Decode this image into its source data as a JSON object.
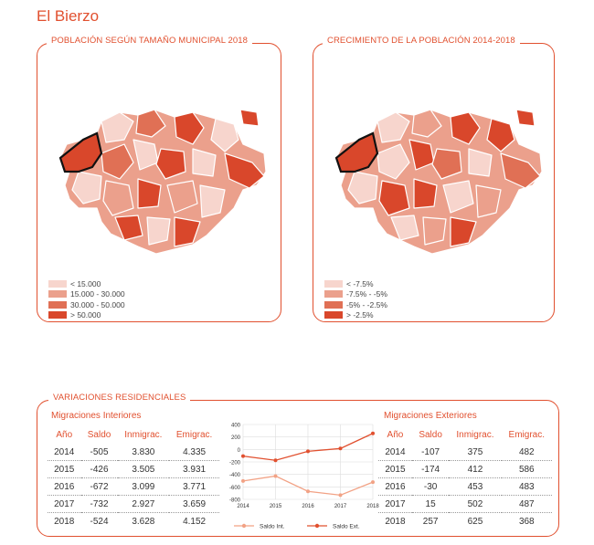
{
  "page_title": "El Bierzo",
  "map1": {
    "title": "POBLACIÓN SEGÚN TAMAÑO MUNICIPAL 2018",
    "legend": [
      {
        "label": "< 15.000",
        "color": "#f7d5cd"
      },
      {
        "label": "15.000 - 30.000",
        "color": "#eba08c"
      },
      {
        "label": "30.000 - 50.000",
        "color": "#e07055"
      },
      {
        "label": "> 50.000",
        "color": "#d9472b"
      }
    ]
  },
  "map2": {
    "title": "CRECIMIENTO DE LA POBLACIÓN 2014-2018",
    "legend": [
      {
        "label": "< -7.5%",
        "color": "#f7d5cd"
      },
      {
        "label": "-7.5% - -5%",
        "color": "#eba08c"
      },
      {
        "label": "-5% - -2.5%",
        "color": "#e07055"
      },
      {
        "label": "> -2.5%",
        "color": "#d9472b"
      }
    ]
  },
  "variaciones": {
    "title": "VARIACIONES RESIDENCIALES",
    "interiores": {
      "title": "Migraciones Interiores",
      "headers": [
        "Año",
        "Saldo",
        "Inmigrac.",
        "Emigrac."
      ],
      "rows": [
        [
          "2014",
          "-505",
          "3.830",
          "4.335"
        ],
        [
          "2015",
          "-426",
          "3.505",
          "3.931"
        ],
        [
          "2016",
          "-672",
          "3.099",
          "3.771"
        ],
        [
          "2017",
          "-732",
          "2.927",
          "3.659"
        ],
        [
          "2018",
          "-524",
          "3.628",
          "4.152"
        ]
      ]
    },
    "exteriores": {
      "title": "Migraciones Exteriores",
      "headers": [
        "Año",
        "Saldo",
        "Inmigrac.",
        "Emigrac."
      ],
      "rows": [
        [
          "2014",
          "-107",
          "375",
          "482"
        ],
        [
          "2015",
          "-174",
          "412",
          "586"
        ],
        [
          "2016",
          "-30",
          "453",
          "483"
        ],
        [
          "2017",
          "15",
          "502",
          "487"
        ],
        [
          "2018",
          "257",
          "625",
          "368"
        ]
      ]
    }
  },
  "chart_data": {
    "type": "line",
    "x": [
      2014,
      2015,
      2016,
      2017,
      2018
    ],
    "series": [
      {
        "name": "Saldo Int.",
        "values": [
          -505,
          -426,
          -672,
          -732,
          -524
        ],
        "color": "#f2a285"
      },
      {
        "name": "Saldo Ext.",
        "values": [
          -107,
          -174,
          -30,
          15,
          257
        ],
        "color": "#e1502f"
      }
    ],
    "ylim": [
      -800,
      400
    ],
    "yticks": [
      400,
      200,
      0,
      -200,
      -400,
      -600,
      -800
    ],
    "title": "",
    "xlabel": "",
    "ylabel": ""
  }
}
